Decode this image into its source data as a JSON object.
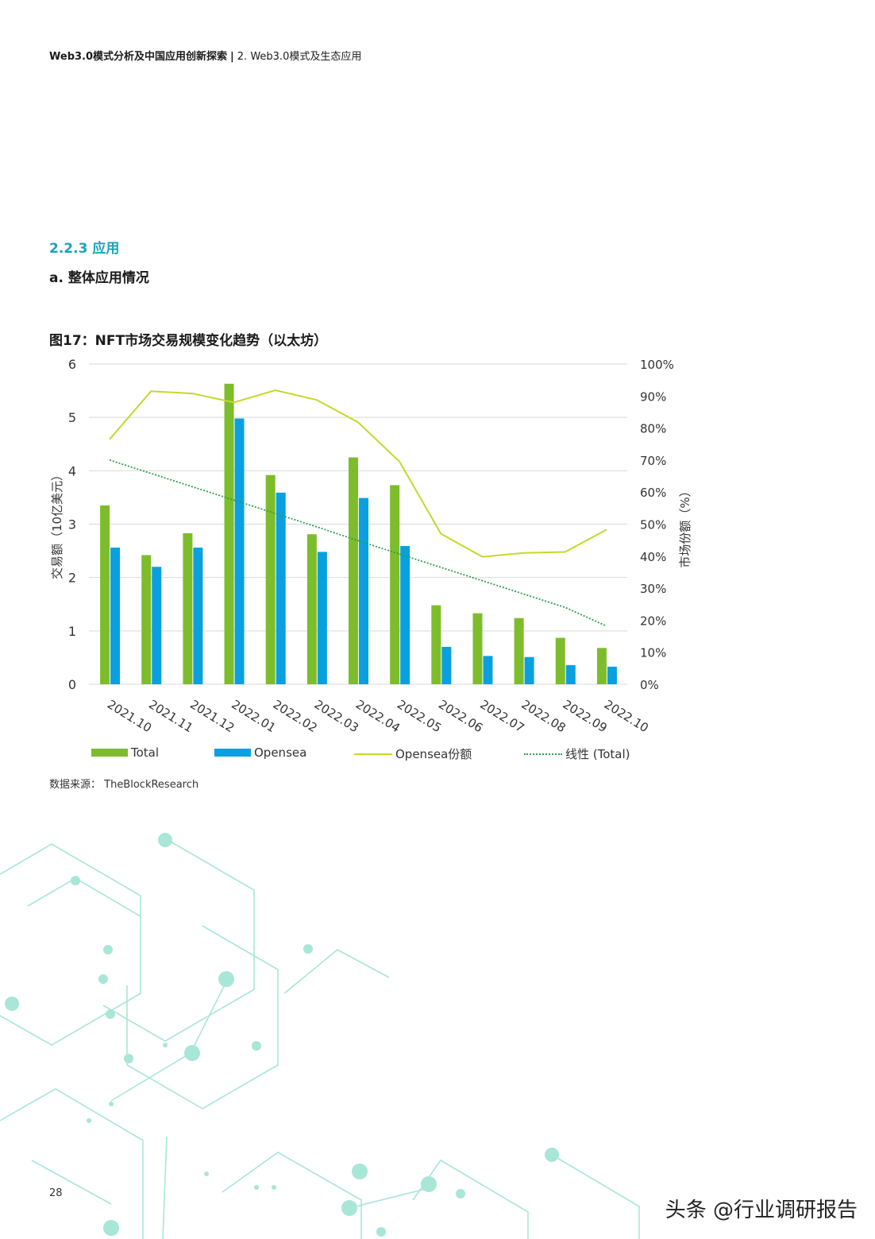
{
  "header": {
    "doc_title": "Web3.0模式分析及中国应用创新探索",
    "separator": "|",
    "chapter": "2. Web3.0模式及生态应用"
  },
  "section": {
    "number_title": "2.2.3 应用",
    "subtitle": "a. 整体应用情况"
  },
  "figure": {
    "title": "图17：NFT市场交易规模变化趋势（以太坊）",
    "source": "数据来源：  TheBlockResearch"
  },
  "page_number": "28",
  "watermark": "头条 @行业调研报告",
  "colors": {
    "total": "#7dbd2b",
    "opensea": "#0aa0e0",
    "share_line": "#c5d92a",
    "trend_line": "#2e9e4a",
    "grid": "#d9d9d9",
    "accent": "#1aa3b8",
    "decor": "#a8e6d8"
  },
  "chart_data": {
    "type": "bar",
    "categories": [
      "2021.10",
      "2021.11",
      "2021.12",
      "2022.01",
      "2022.02",
      "2022.03",
      "2022.04",
      "2022.05",
      "2022.06",
      "2022.07",
      "2022.08",
      "2022.09",
      "2022.10"
    ],
    "ylabel": "交易额（10亿美元）",
    "y2label": "市场份额（%）",
    "ylim": [
      0,
      6
    ],
    "y2lim": [
      0,
      100
    ],
    "yticks": [
      "0",
      "1",
      "2",
      "3",
      "4",
      "5",
      "6"
    ],
    "y2ticks": [
      "0%",
      "10%",
      "20%",
      "30%",
      "40%",
      "50%",
      "60%",
      "70%",
      "80%",
      "90%",
      "100%"
    ],
    "grid": true,
    "legend_position": "bottom",
    "series": [
      {
        "name": "Total",
        "type": "bar",
        "axis": "left",
        "values": [
          3.35,
          2.42,
          2.83,
          5.63,
          3.92,
          2.81,
          4.25,
          3.73,
          1.48,
          1.33,
          1.24,
          0.87,
          0.68
        ]
      },
      {
        "name": "Opensea",
        "type": "bar",
        "axis": "left",
        "values": [
          2.56,
          2.2,
          2.56,
          4.98,
          3.59,
          2.48,
          3.49,
          2.59,
          0.7,
          0.53,
          0.51,
          0.36,
          0.33
        ]
      },
      {
        "name": "Opensea份额",
        "type": "line",
        "axis": "right",
        "values": [
          76.5,
          91.5,
          90.8,
          88,
          91.8,
          88.8,
          81.8,
          69.5,
          47,
          39.8,
          41,
          41.3,
          48.3
        ]
      },
      {
        "name": "线性 (Total)",
        "type": "trend",
        "axis": "left",
        "values": [
          4.2,
          3.95,
          3.7,
          3.45,
          3.2,
          2.95,
          2.69,
          2.44,
          2.19,
          1.94,
          1.69,
          1.44,
          1.09
        ]
      }
    ]
  }
}
